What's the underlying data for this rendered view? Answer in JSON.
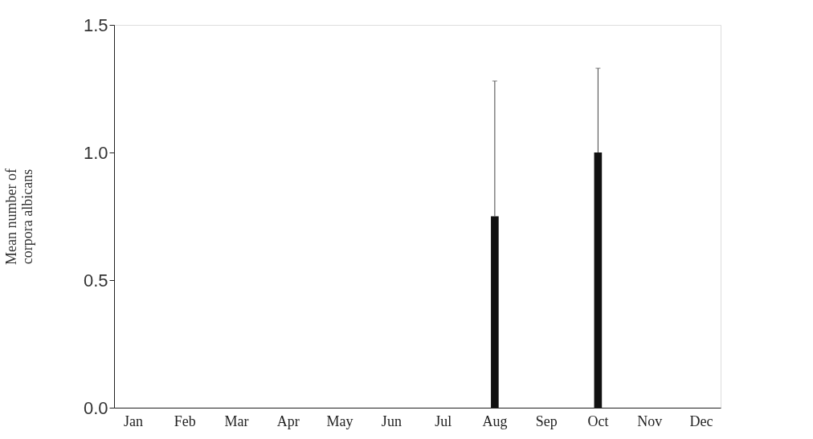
{
  "chart_data": {
    "type": "bar",
    "ylabel": "Mean number of\ncorpora albicans",
    "categories": [
      "Jan",
      "Feb",
      "Mar",
      "Apr",
      "May",
      "Jun",
      "Jul",
      "Aug",
      "Sep",
      "Oct",
      "Nov",
      "Dec"
    ],
    "values": [
      0,
      0,
      0,
      0,
      0,
      0,
      0,
      0.75,
      0,
      1.0,
      0,
      0
    ],
    "errors": [
      null,
      null,
      null,
      null,
      null,
      null,
      null,
      [
        0.75,
        1.28
      ],
      null,
      [
        1.0,
        1.33
      ],
      null,
      null
    ],
    "color": "#111111",
    "ylim": [
      0,
      1.5
    ],
    "yticks": [
      {
        "value": 0,
        "label": "0.0"
      },
      {
        "value": 0.5,
        "label": "0.5"
      },
      {
        "value": 1,
        "label": "1.0"
      },
      {
        "value": 1.5,
        "label": "1.5"
      }
    ],
    "grid": false
  }
}
